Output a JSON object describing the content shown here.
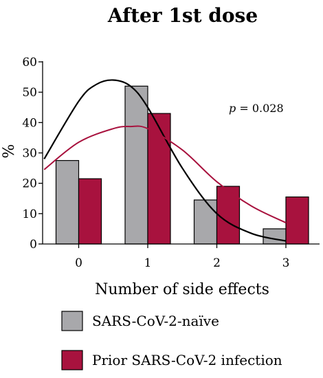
{
  "chart_data": {
    "type": "bar",
    "title": "After 1st dose",
    "xlabel": "Number of side effects",
    "ylabel": "%",
    "categories": [
      "0",
      "1",
      "2",
      "3"
    ],
    "ylim": [
      0,
      60
    ],
    "yticks": [
      "0",
      "10",
      "20",
      "30",
      "40",
      "50",
      "60"
    ],
    "series": [
      {
        "name": "SARS-CoV-2-naïve",
        "color": "#a8a8ab",
        "values": [
          27.5,
          52,
          14.5,
          5
        ]
      },
      {
        "name": "Prior SARS-CoV-2 infection",
        "color": "#a8123e",
        "values": [
          21.5,
          43,
          19,
          15.5
        ]
      }
    ],
    "fit_curves": [
      {
        "series": "SARS-CoV-2-naïve",
        "color": "#000000",
        "points": [
          [
            -0.5,
            28
          ],
          [
            0,
            47
          ],
          [
            0.25,
            52.5
          ],
          [
            0.5,
            54
          ],
          [
            0.75,
            52
          ],
          [
            1,
            45
          ],
          [
            1.5,
            25
          ],
          [
            2,
            10
          ],
          [
            2.5,
            3.5
          ],
          [
            3,
            1
          ]
        ]
      },
      {
        "series": "Prior SARS-CoV-2 infection",
        "color": "#a8123e",
        "points": [
          [
            -0.5,
            24.5
          ],
          [
            0,
            33.5
          ],
          [
            0.5,
            38
          ],
          [
            0.75,
            38.7
          ],
          [
            1,
            38
          ],
          [
            1.5,
            31
          ],
          [
            2,
            20.5
          ],
          [
            2.5,
            12.5
          ],
          [
            3,
            7
          ]
        ]
      }
    ],
    "annotation": {
      "italic": "p",
      "text": " = 0.028"
    },
    "legend_position": "bottom"
  }
}
